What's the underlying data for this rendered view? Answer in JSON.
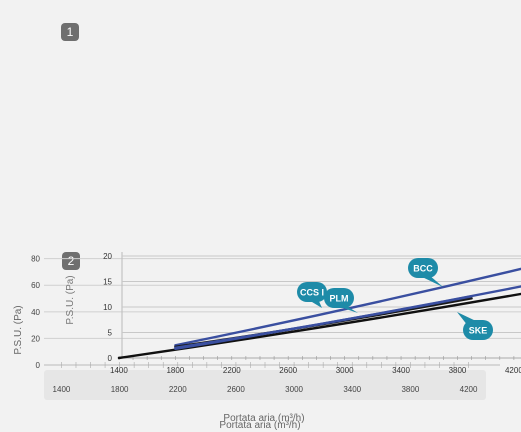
{
  "badges": [
    "1",
    "2"
  ],
  "chart_data": [
    {
      "type": "line",
      "name_role": "background chart",
      "xlabel": "Portata aria (m³/h)",
      "ylabel": "P.S.U. (Pa)",
      "xlim": [
        1280,
        4320
      ],
      "ylim": [
        0,
        88
      ],
      "x_ticks": [
        1400,
        1800,
        2200,
        2600,
        3000,
        3400,
        3800,
        4200
      ],
      "y_ticks": [
        0,
        20,
        40,
        60,
        80
      ],
      "series": []
    },
    {
      "type": "line",
      "xlabel": "Portata aria (m³/h)",
      "ylabel": "P.S.U. (Pa)",
      "xlim": [
        1280,
        4300
      ],
      "ylim": [
        0,
        20
      ],
      "x_ticks": [
        1400,
        1800,
        2200,
        2600,
        3000,
        3400,
        3800,
        4200
      ],
      "y_ticks": [
        0,
        5,
        10,
        15,
        20
      ],
      "series": [
        {
          "name": "BCC",
          "color": "#3a4fa0",
          "x": [
            1800,
            4300
          ],
          "y": [
            2.5,
            17.8
          ]
        },
        {
          "name": "CCS",
          "color": "#1a1a1a",
          "x": [
            1800,
            3900
          ],
          "y": [
            2.2,
            11.7
          ]
        },
        {
          "name": "PLM",
          "color": "#3a4fa0",
          "x": [
            1800,
            3900
          ],
          "y": [
            2.0,
            12.1
          ]
        },
        {
          "name": "SKE",
          "color": "#111111",
          "x": [
            1400,
            4300
          ],
          "y": [
            0,
            12.8
          ]
        },
        {
          "name": "",
          "color": "#3a4fa0",
          "x": [
            1800,
            4300
          ],
          "y": [
            1.8,
            14.3
          ]
        }
      ],
      "callouts": [
        {
          "text": "BCC",
          "color": "#1e8ba8"
        },
        {
          "text": "CCS I",
          "color": "#1e8ba8"
        },
        {
          "text": "PLM",
          "color": "#1e8ba8"
        },
        {
          "text": "SKE",
          "color": "#1e8ba8"
        }
      ]
    }
  ]
}
